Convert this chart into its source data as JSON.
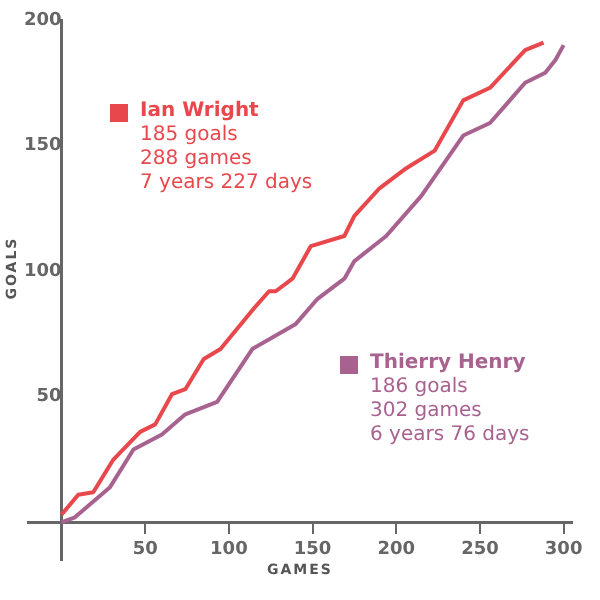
{
  "chart_data": {
    "type": "line",
    "xlabel": "GAMES",
    "ylabel": "GOALS",
    "xlim": [
      -20,
      305
    ],
    "ylim": [
      -15,
      200
    ],
    "xticks": [
      50,
      100,
      150,
      200,
      250,
      300
    ],
    "yticks": [
      50,
      100,
      150,
      200
    ],
    "grid": false,
    "legend": "top",
    "marker": "none",
    "line_style": "solid",
    "annotations": [
      "185 goals",
      "288 games",
      "7 years 227 days",
      "186 goals",
      "302 games",
      "6 years 76 days"
    ],
    "series": [
      {
        "name": "Ian Wright",
        "color": "#e8474c",
        "x": [
          0,
          10,
          19,
          31,
          47,
          56,
          66,
          74,
          85,
          95,
          116,
          124,
          128,
          138,
          149,
          169,
          175,
          190,
          206,
          223,
          240,
          256,
          277,
          288
        ],
        "values": [
          3,
          11,
          12,
          25,
          36,
          39,
          51,
          53,
          65,
          69,
          86,
          92,
          92,
          97,
          110,
          114,
          122,
          133,
          141,
          148,
          168,
          173,
          188,
          191
        ]
      },
      {
        "name": "Thierry Henry",
        "color": "#a8628f",
        "x": [
          0,
          8,
          29,
          43,
          60,
          74,
          93,
          114,
          140,
          153,
          169,
          175,
          194,
          215,
          240,
          256,
          277,
          289,
          295,
          300
        ],
        "values": [
          0,
          2,
          14,
          29,
          35,
          43,
          48,
          69,
          79,
          89,
          97,
          104,
          114,
          130,
          154,
          159,
          175,
          179,
          184,
          190
        ]
      }
    ]
  }
}
